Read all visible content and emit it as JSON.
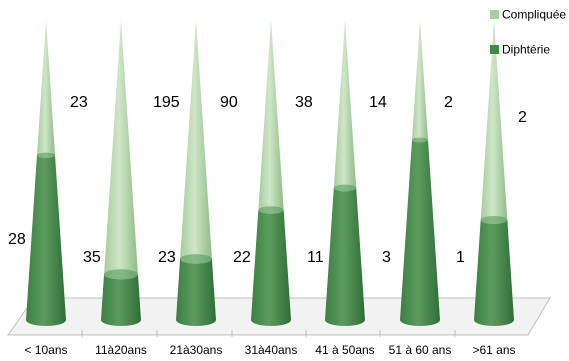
{
  "chart_data": {
    "type": "bar",
    "subtype": "stacked-3d-cone",
    "categories": [
      "< 10ans",
      "11à20ans",
      "21à30ans",
      "31à40ans",
      "41 à 50ans",
      "51 à 60 ans",
      ">61 ans"
    ],
    "series": [
      {
        "name": "Diphtérie",
        "color": "#3f8a48",
        "values": [
          28,
          35,
          23,
          22,
          11,
          3,
          1
        ]
      },
      {
        "name": "Compliquée",
        "color": "#a9cfa0",
        "values": [
          23,
          195,
          90,
          38,
          14,
          2,
          2
        ]
      }
    ],
    "legend_position": "top-right",
    "grid": false,
    "value_axis_shown": false
  }
}
